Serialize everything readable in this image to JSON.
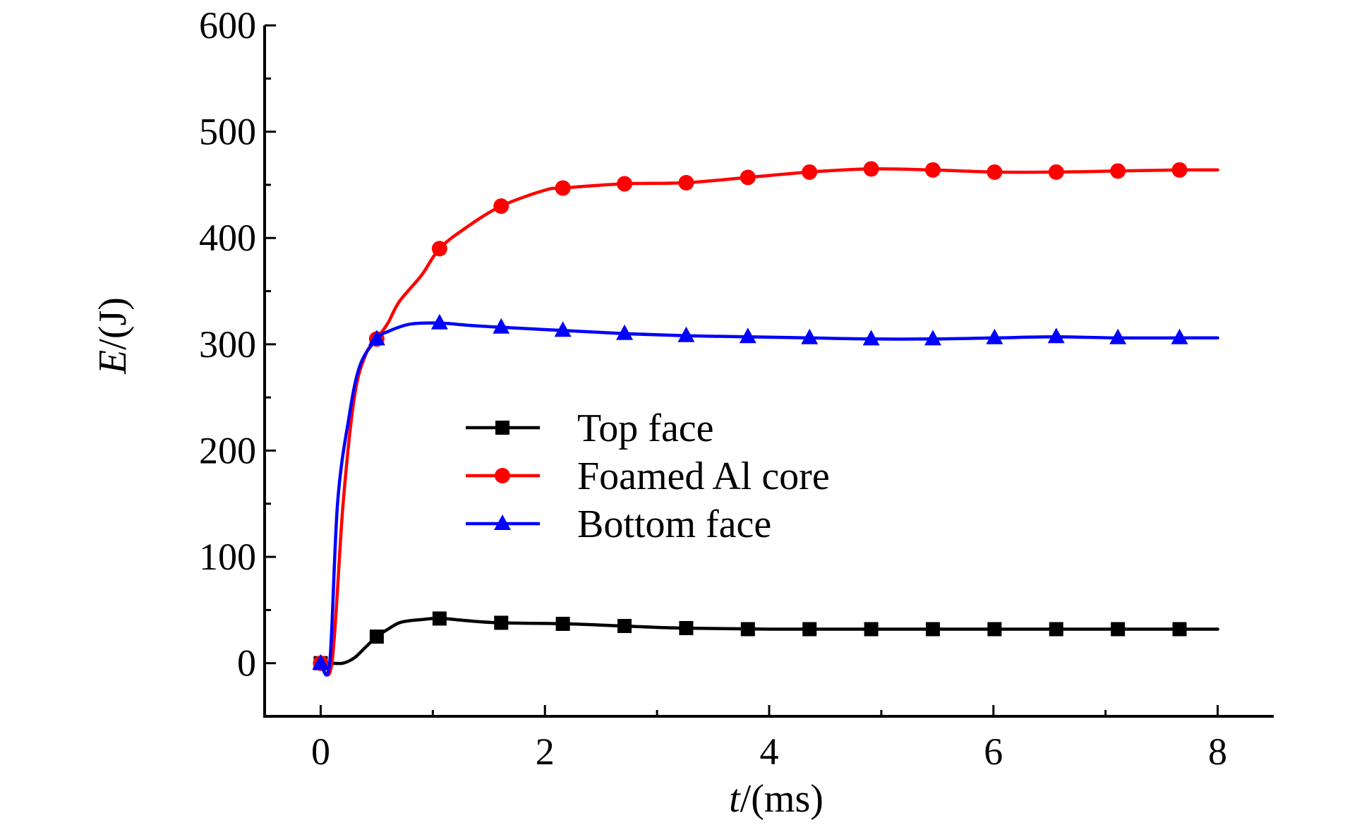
{
  "chart_data": {
    "type": "line",
    "title": "",
    "xlabel": {
      "var": "t",
      "unit": "/(ms)"
    },
    "ylabel": {
      "var": "E",
      "unit": "/(J)"
    },
    "xlim": [
      -0.5,
      8.5
    ],
    "ylim": [
      -50,
      600
    ],
    "xticks": [
      0,
      2,
      4,
      6,
      8
    ],
    "xtick_labels": [
      "0",
      "2",
      "4",
      "6",
      "8"
    ],
    "yticks": [
      0,
      100,
      200,
      300,
      400,
      500,
      600
    ],
    "ytick_labels": [
      "0",
      "100",
      "200",
      "300",
      "400",
      "500",
      "600"
    ],
    "grid": false,
    "legend_position": "center",
    "series": [
      {
        "name": "Top face",
        "color": "#000000",
        "marker": "square",
        "curve": [
          [
            0,
            0
          ],
          [
            0.1,
            0
          ],
          [
            0.2,
            0
          ],
          [
            0.3,
            5
          ],
          [
            0.4,
            15
          ],
          [
            0.5,
            25
          ],
          [
            0.6,
            32
          ],
          [
            0.7,
            38
          ],
          [
            0.8,
            40
          ],
          [
            0.9,
            41
          ],
          [
            1.0,
            42
          ],
          [
            1.1,
            42
          ],
          [
            1.3,
            40
          ],
          [
            1.6,
            38
          ],
          [
            2.2,
            37
          ],
          [
            2.7,
            35
          ],
          [
            3.2,
            33
          ],
          [
            4.0,
            32
          ],
          [
            5.0,
            32
          ],
          [
            6.0,
            32
          ],
          [
            7.0,
            32
          ],
          [
            8.0,
            32
          ]
        ],
        "markers": [
          [
            0,
            0
          ],
          [
            0.5,
            25
          ],
          [
            1.06,
            42
          ],
          [
            1.61,
            38
          ],
          [
            2.16,
            37
          ],
          [
            2.71,
            35
          ],
          [
            3.26,
            33
          ],
          [
            3.81,
            32
          ],
          [
            4.36,
            32
          ],
          [
            4.91,
            32
          ],
          [
            5.46,
            32
          ],
          [
            6.01,
            32
          ],
          [
            6.56,
            32
          ],
          [
            7.11,
            32
          ],
          [
            7.66,
            32
          ]
        ]
      },
      {
        "name": "Foamed Al core",
        "color": "#ff0000",
        "marker": "circle",
        "curve": [
          [
            0,
            0
          ],
          [
            0.1,
            0
          ],
          [
            0.2,
            150
          ],
          [
            0.3,
            250
          ],
          [
            0.4,
            290
          ],
          [
            0.5,
            305
          ],
          [
            0.6,
            320
          ],
          [
            0.7,
            340
          ],
          [
            0.9,
            365
          ],
          [
            1.06,
            390
          ],
          [
            1.3,
            410
          ],
          [
            1.61,
            430
          ],
          [
            2.0,
            445
          ],
          [
            2.16,
            447
          ],
          [
            2.71,
            451
          ],
          [
            3.26,
            452
          ],
          [
            3.81,
            457
          ],
          [
            4.36,
            462
          ],
          [
            4.91,
            465
          ],
          [
            5.46,
            464
          ],
          [
            6.01,
            462
          ],
          [
            6.56,
            462
          ],
          [
            7.11,
            463
          ],
          [
            7.66,
            464
          ],
          [
            8.0,
            464
          ]
        ],
        "markers": [
          [
            0,
            0
          ],
          [
            0.5,
            305
          ],
          [
            1.06,
            390
          ],
          [
            1.61,
            430
          ],
          [
            2.16,
            447
          ],
          [
            2.71,
            451
          ],
          [
            3.26,
            452
          ],
          [
            3.81,
            457
          ],
          [
            4.36,
            462
          ],
          [
            4.91,
            465
          ],
          [
            5.46,
            464
          ],
          [
            6.01,
            462
          ],
          [
            6.56,
            462
          ],
          [
            7.11,
            463
          ],
          [
            7.66,
            464
          ]
        ]
      },
      {
        "name": "Bottom face",
        "color": "#0000ff",
        "marker": "triangle",
        "curve": [
          [
            0,
            0
          ],
          [
            0.08,
            0
          ],
          [
            0.15,
            150
          ],
          [
            0.25,
            230
          ],
          [
            0.35,
            280
          ],
          [
            0.5,
            305
          ],
          [
            0.6,
            312
          ],
          [
            0.8,
            319
          ],
          [
            1.06,
            320
          ],
          [
            1.3,
            318
          ],
          [
            1.61,
            316
          ],
          [
            2.16,
            313
          ],
          [
            2.71,
            310
          ],
          [
            3.26,
            308
          ],
          [
            3.81,
            307
          ],
          [
            4.36,
            306
          ],
          [
            4.91,
            305
          ],
          [
            5.46,
            305
          ],
          [
            6.01,
            306
          ],
          [
            6.56,
            307
          ],
          [
            7.11,
            306
          ],
          [
            7.66,
            306
          ],
          [
            8.0,
            306
          ]
        ],
        "markers": [
          [
            0,
            0
          ],
          [
            0.5,
            305
          ],
          [
            1.06,
            320
          ],
          [
            1.61,
            316
          ],
          [
            2.16,
            313
          ],
          [
            2.71,
            310
          ],
          [
            3.26,
            308
          ],
          [
            3.81,
            307
          ],
          [
            4.36,
            306
          ],
          [
            4.91,
            305
          ],
          [
            5.46,
            305
          ],
          [
            6.01,
            306
          ],
          [
            6.56,
            307
          ],
          [
            7.11,
            306
          ],
          [
            7.66,
            306
          ]
        ]
      }
    ]
  }
}
